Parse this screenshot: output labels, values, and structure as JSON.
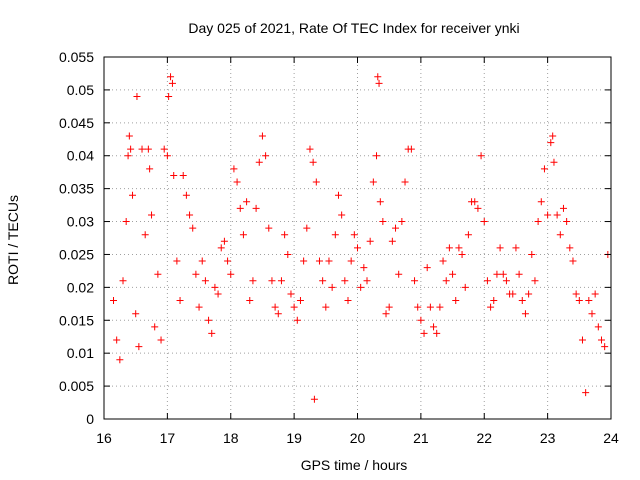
{
  "chart_data": {
    "type": "scatter",
    "title": "Day 025 of 2021, Rate Of TEC Index for receiver ynki",
    "xlabel": "GPS time / hours",
    "ylabel": "ROTI / TECUs",
    "xlim": [
      16,
      24
    ],
    "ylim": [
      0,
      0.055
    ],
    "x_ticks": [
      16,
      17,
      18,
      19,
      20,
      21,
      22,
      23,
      24
    ],
    "x_tick_labels": [
      "16",
      "17",
      "18",
      "19",
      "20",
      "21",
      "22",
      "23",
      "24"
    ],
    "y_ticks": [
      0,
      0.005,
      0.01,
      0.015,
      0.02,
      0.025,
      0.03,
      0.035,
      0.04,
      0.045,
      0.05,
      0.055
    ],
    "y_tick_labels": [
      "0",
      "0.005",
      "0.01",
      "0.015",
      "0.02",
      "0.025",
      "0.03",
      "0.035",
      "0.04",
      "0.045",
      "0.05",
      "0.055"
    ],
    "grid": true,
    "marker": "plus",
    "marker_color": "#ff0000",
    "series": [
      {
        "points": [
          [
            16.15,
            0.018
          ],
          [
            16.2,
            0.012
          ],
          [
            16.25,
            0.009
          ],
          [
            16.3,
            0.021
          ],
          [
            16.35,
            0.03
          ],
          [
            16.38,
            0.04
          ],
          [
            16.4,
            0.043
          ],
          [
            16.42,
            0.041
          ],
          [
            16.45,
            0.034
          ],
          [
            16.5,
            0.016
          ],
          [
            16.52,
            0.049
          ],
          [
            16.55,
            0.011
          ],
          [
            16.6,
            0.041
          ],
          [
            16.65,
            0.028
          ],
          [
            16.7,
            0.041
          ],
          [
            16.72,
            0.038
          ],
          [
            16.75,
            0.031
          ],
          [
            16.8,
            0.014
          ],
          [
            16.85,
            0.022
          ],
          [
            16.9,
            0.012
          ],
          [
            16.95,
            0.041
          ],
          [
            17.0,
            0.04
          ],
          [
            17.02,
            0.049
          ],
          [
            17.05,
            0.052
          ],
          [
            17.08,
            0.051
          ],
          [
            17.1,
            0.037
          ],
          [
            17.15,
            0.024
          ],
          [
            17.2,
            0.018
          ],
          [
            17.25,
            0.037
          ],
          [
            17.3,
            0.034
          ],
          [
            17.35,
            0.031
          ],
          [
            17.4,
            0.029
          ],
          [
            17.45,
            0.022
          ],
          [
            17.5,
            0.017
          ],
          [
            17.55,
            0.024
          ],
          [
            17.6,
            0.021
          ],
          [
            17.65,
            0.015
          ],
          [
            17.7,
            0.013
          ],
          [
            17.75,
            0.02
          ],
          [
            17.8,
            0.019
          ],
          [
            17.85,
            0.026
          ],
          [
            17.9,
            0.027
          ],
          [
            17.95,
            0.024
          ],
          [
            18.0,
            0.022
          ],
          [
            18.05,
            0.038
          ],
          [
            18.1,
            0.036
          ],
          [
            18.15,
            0.032
          ],
          [
            18.2,
            0.028
          ],
          [
            18.25,
            0.033
          ],
          [
            18.3,
            0.018
          ],
          [
            18.35,
            0.021
          ],
          [
            18.4,
            0.032
          ],
          [
            18.45,
            0.039
          ],
          [
            18.5,
            0.043
          ],
          [
            18.55,
            0.04
          ],
          [
            18.6,
            0.029
          ],
          [
            18.65,
            0.021
          ],
          [
            18.7,
            0.017
          ],
          [
            18.75,
            0.016
          ],
          [
            18.8,
            0.021
          ],
          [
            18.85,
            0.028
          ],
          [
            18.9,
            0.025
          ],
          [
            18.95,
            0.019
          ],
          [
            19.0,
            0.017
          ],
          [
            19.05,
            0.015
          ],
          [
            19.1,
            0.018
          ],
          [
            19.15,
            0.024
          ],
          [
            19.2,
            0.029
          ],
          [
            19.25,
            0.041
          ],
          [
            19.3,
            0.039
          ],
          [
            19.32,
            0.003
          ],
          [
            19.35,
            0.036
          ],
          [
            19.4,
            0.024
          ],
          [
            19.45,
            0.021
          ],
          [
            19.5,
            0.017
          ],
          [
            19.55,
            0.024
          ],
          [
            19.6,
            0.02
          ],
          [
            19.65,
            0.028
          ],
          [
            19.7,
            0.034
          ],
          [
            19.75,
            0.031
          ],
          [
            19.8,
            0.021
          ],
          [
            19.85,
            0.018
          ],
          [
            19.9,
            0.024
          ],
          [
            19.95,
            0.028
          ],
          [
            20.0,
            0.026
          ],
          [
            20.05,
            0.02
          ],
          [
            20.1,
            0.023
          ],
          [
            20.15,
            0.021
          ],
          [
            20.2,
            0.027
          ],
          [
            20.25,
            0.036
          ],
          [
            20.3,
            0.04
          ],
          [
            20.32,
            0.052
          ],
          [
            20.34,
            0.051
          ],
          [
            20.36,
            0.033
          ],
          [
            20.4,
            0.03
          ],
          [
            20.45,
            0.016
          ],
          [
            20.5,
            0.017
          ],
          [
            20.55,
            0.027
          ],
          [
            20.6,
            0.029
          ],
          [
            20.65,
            0.022
          ],
          [
            20.7,
            0.03
          ],
          [
            20.75,
            0.036
          ],
          [
            20.8,
            0.041
          ],
          [
            20.85,
            0.041
          ],
          [
            20.9,
            0.021
          ],
          [
            20.95,
            0.017
          ],
          [
            21.0,
            0.015
          ],
          [
            21.05,
            0.013
          ],
          [
            21.1,
            0.023
          ],
          [
            21.15,
            0.017
          ],
          [
            21.2,
            0.014
          ],
          [
            21.25,
            0.013
          ],
          [
            21.3,
            0.017
          ],
          [
            21.35,
            0.024
          ],
          [
            21.4,
            0.021
          ],
          [
            21.45,
            0.026
          ],
          [
            21.5,
            0.022
          ],
          [
            21.55,
            0.018
          ],
          [
            21.6,
            0.026
          ],
          [
            21.65,
            0.025
          ],
          [
            21.7,
            0.02
          ],
          [
            21.75,
            0.028
          ],
          [
            21.8,
            0.033
          ],
          [
            21.85,
            0.033
          ],
          [
            21.9,
            0.032
          ],
          [
            21.95,
            0.04
          ],
          [
            22.0,
            0.03
          ],
          [
            22.05,
            0.021
          ],
          [
            22.1,
            0.017
          ],
          [
            22.15,
            0.018
          ],
          [
            22.2,
            0.022
          ],
          [
            22.25,
            0.026
          ],
          [
            22.3,
            0.022
          ],
          [
            22.35,
            0.021
          ],
          [
            22.4,
            0.019
          ],
          [
            22.45,
            0.019
          ],
          [
            22.5,
            0.026
          ],
          [
            22.55,
            0.022
          ],
          [
            22.6,
            0.018
          ],
          [
            22.65,
            0.016
          ],
          [
            22.7,
            0.019
          ],
          [
            22.75,
            0.025
          ],
          [
            22.8,
            0.021
          ],
          [
            22.85,
            0.03
          ],
          [
            22.9,
            0.033
          ],
          [
            22.95,
            0.038
          ],
          [
            23.0,
            0.031
          ],
          [
            23.05,
            0.042
          ],
          [
            23.08,
            0.043
          ],
          [
            23.1,
            0.039
          ],
          [
            23.15,
            0.031
          ],
          [
            23.2,
            0.028
          ],
          [
            23.25,
            0.032
          ],
          [
            23.3,
            0.03
          ],
          [
            23.35,
            0.026
          ],
          [
            23.4,
            0.024
          ],
          [
            23.45,
            0.019
          ],
          [
            23.5,
            0.018
          ],
          [
            23.55,
            0.012
          ],
          [
            23.6,
            0.004
          ],
          [
            23.65,
            0.018
          ],
          [
            23.7,
            0.016
          ],
          [
            23.75,
            0.019
          ],
          [
            23.8,
            0.014
          ],
          [
            23.85,
            0.012
          ],
          [
            23.9,
            0.011
          ],
          [
            23.95,
            0.025
          ]
        ]
      }
    ]
  }
}
